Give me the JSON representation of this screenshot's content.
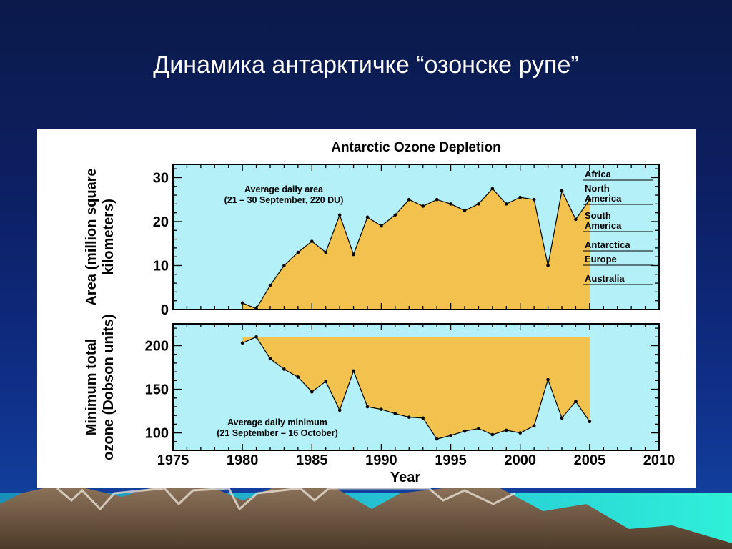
{
  "slide": {
    "title": "Динамика антарктичке “озонске рупе”"
  },
  "chart_data": [
    {
      "type": "area",
      "title": "Antarctic Ozone Depletion",
      "ylabel": "Area (million square kilometers)",
      "ylabel_lines": [
        "Area (million square",
        "kilometers)"
      ],
      "xlabel": "Year",
      "xlim": [
        1975,
        2010
      ],
      "ylim": [
        0,
        33
      ],
      "xticks": [
        1975,
        1980,
        1985,
        1990,
        1995,
        2000,
        2005,
        2010
      ],
      "yticks": [
        0,
        10,
        20,
        30
      ],
      "annotation": [
        "Average daily area",
        "(21 – 30 September, 220 DU)"
      ],
      "legend_entries": [
        "Africa",
        "North America",
        "South America",
        "Antarctica",
        "Europe",
        "Australia"
      ],
      "x": [
        1980,
        1981,
        1982,
        1983,
        1984,
        1985,
        1986,
        1987,
        1988,
        1989,
        1990,
        1991,
        1992,
        1993,
        1994,
        1995,
        1996,
        1997,
        1998,
        1999,
        2000,
        2001,
        2002,
        2003,
        2004,
        2005
      ],
      "values": [
        1.5,
        0.2,
        5.5,
        10,
        13,
        15.5,
        13,
        21.5,
        12.5,
        21,
        19,
        21.5,
        25,
        23.5,
        25,
        24,
        22.5,
        24,
        27.5,
        24,
        25.5,
        25,
        10,
        27,
        20.5,
        25
      ],
      "colors": {
        "fill": "#f2c14e",
        "plot_bg": "#b3f0f7",
        "line": "#000000"
      },
      "grid": false
    },
    {
      "type": "area",
      "ylabel": "Minimum total ozone (Dobson units)",
      "ylabel_lines": [
        "Minimum total",
        "ozone (Dobson units)"
      ],
      "xlabel": "Year",
      "xlim": [
        1975,
        2010
      ],
      "ylim": [
        80,
        225
      ],
      "xticks": [
        1975,
        1980,
        1985,
        1990,
        1995,
        2000,
        2005,
        2010
      ],
      "yticks": [
        100,
        150,
        200
      ],
      "reference_level": 210,
      "annotation": [
        "Average daily minimum",
        "(21 September – 16 October)"
      ],
      "x": [
        1980,
        1981,
        1982,
        1983,
        1984,
        1985,
        1986,
        1987,
        1988,
        1989,
        1990,
        1991,
        1992,
        1993,
        1994,
        1995,
        1996,
        1997,
        1998,
        1999,
        2000,
        2001,
        2002,
        2003,
        2004,
        2005
      ],
      "values": [
        203,
        210,
        185,
        173,
        164,
        147,
        159,
        126,
        171,
        130,
        127,
        122,
        118,
        117,
        93,
        97,
        102,
        105,
        98,
        103,
        100,
        108,
        161,
        117,
        136,
        113
      ],
      "colors": {
        "fill": "#f2c14e",
        "plot_bg": "#b3f0f7",
        "line": "#000000"
      },
      "grid": false
    }
  ]
}
